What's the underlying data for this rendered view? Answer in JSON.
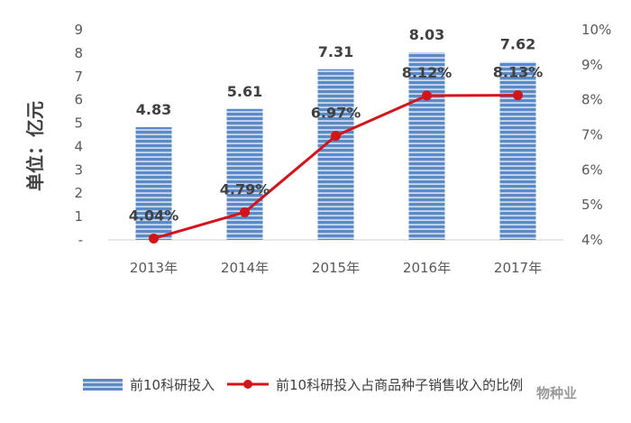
{
  "colors": {
    "bar": "#5b8ac6",
    "bar_stripe": "#c9d9ee",
    "line": "#d2151b",
    "axis": "#d9d9d9",
    "watermark": "#9a9a9a"
  },
  "watermark": "物种业",
  "chart_data": {
    "type": "bar",
    "categories": [
      "2013年",
      "2014年",
      "2015年",
      "2016年",
      "2017年"
    ],
    "series": [
      {
        "name": "前10科研投入",
        "type": "bar",
        "axis": "left",
        "values": [
          4.83,
          5.61,
          7.31,
          8.03,
          7.62
        ],
        "labels": [
          "4.83",
          "5.61",
          "7.31",
          "8.03",
          "7.62"
        ]
      },
      {
        "name": "前10科研投入占商品种子销售收入的比例",
        "type": "line",
        "axis": "right",
        "values": [
          4.04,
          4.79,
          6.97,
          8.12,
          8.13
        ],
        "labels": [
          "4.04%",
          "4.79%",
          "6.97%",
          "8.12%",
          "8.13%"
        ]
      }
    ],
    "ylabel": "单位：亿元",
    "ylim": [
      0,
      9
    ],
    "yticks": [
      "-",
      "1",
      "2",
      "3",
      "4",
      "5",
      "6",
      "7",
      "8",
      "9"
    ],
    "y2lim": [
      4,
      10
    ],
    "y2ticks": [
      "4%",
      "5%",
      "6%",
      "7%",
      "8%",
      "9%",
      "10%"
    ],
    "grid": false,
    "legend": "bottom"
  }
}
